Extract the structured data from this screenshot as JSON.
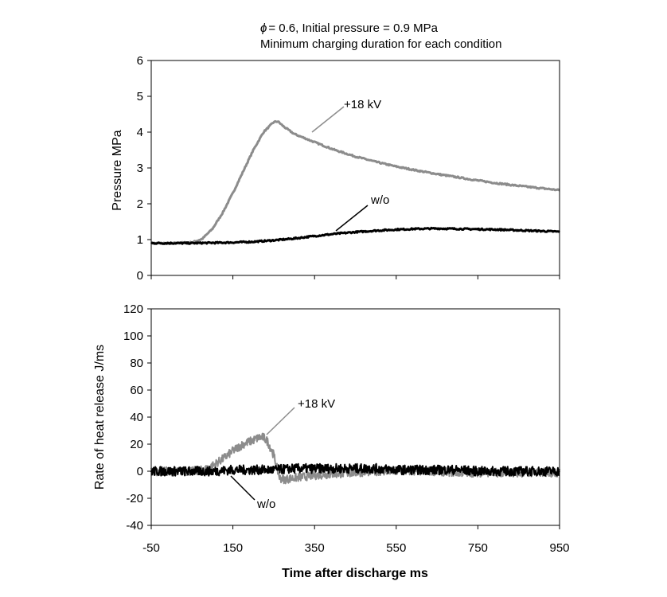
{
  "title": {
    "line1_symbol": "ϕ",
    "line1": "= 0.6, Initial pressure = 0.9 MPa",
    "line2": "Minimum charging duration for each condition"
  },
  "colors": {
    "kv18": "#8c8c8c",
    "wo": "#000000",
    "axis": "#000000"
  },
  "chart_data": [
    {
      "type": "line",
      "ylabel": "Pressure    MPa",
      "xlim": [
        -50,
        950
      ],
      "ylim": [
        0,
        6
      ],
      "yticks": [
        "0",
        "1",
        "2",
        "3",
        "4",
        "5",
        "6"
      ],
      "xticks": [
        -50,
        150,
        350,
        550,
        750,
        950
      ],
      "grid": false,
      "series": [
        {
          "name": "+18 kV",
          "x": [
            -50,
            0,
            50,
            75,
            100,
            125,
            150,
            175,
            200,
            225,
            250,
            260,
            275,
            300,
            350,
            400,
            450,
            500,
            550,
            600,
            650,
            700,
            750,
            800,
            850,
            900,
            950
          ],
          "y": [
            0.9,
            0.9,
            0.92,
            1.02,
            1.3,
            1.75,
            2.3,
            2.9,
            3.5,
            4.0,
            4.28,
            4.3,
            4.15,
            3.95,
            3.72,
            3.5,
            3.32,
            3.17,
            3.04,
            2.93,
            2.83,
            2.74,
            2.65,
            2.57,
            2.5,
            2.44,
            2.38
          ]
        },
        {
          "name": "w/o",
          "x": [
            -50,
            0,
            50,
            100,
            150,
            200,
            250,
            300,
            350,
            400,
            450,
            500,
            550,
            600,
            650,
            700,
            750,
            800,
            850,
            900,
            950
          ],
          "y": [
            0.9,
            0.9,
            0.9,
            0.91,
            0.92,
            0.94,
            0.98,
            1.03,
            1.1,
            1.16,
            1.21,
            1.25,
            1.28,
            1.3,
            1.31,
            1.3,
            1.29,
            1.28,
            1.26,
            1.24,
            1.22
          ]
        }
      ],
      "annotations": [
        {
          "text": "+18 kV",
          "series": "+18 kV"
        },
        {
          "text": "w/o",
          "series": "w/o"
        }
      ]
    },
    {
      "type": "line",
      "ylabel": "Rate of heat release    J/ms",
      "xlabel": "Time after discharge     ms",
      "xlim": [
        -50,
        950
      ],
      "ylim": [
        -40,
        120
      ],
      "yticks": [
        "-40",
        "-20",
        "0",
        "20",
        "40",
        "60",
        "80",
        "100",
        "120"
      ],
      "xticks": [
        "-50",
        "150",
        "350",
        "550",
        "750",
        "950"
      ],
      "grid": false,
      "series": [
        {
          "name": "+18 kV",
          "x": [
            -50,
            0,
            50,
            80,
            100,
            125,
            150,
            175,
            200,
            215,
            225,
            235,
            250,
            260,
            265,
            275,
            300,
            350,
            400,
            450,
            500,
            550,
            600,
            650,
            700,
            750,
            800,
            850,
            900,
            950
          ],
          "y": [
            0,
            0,
            0,
            1,
            4,
            9,
            15,
            20,
            23,
            25,
            25,
            22,
            12,
            0,
            -5,
            -6,
            -5,
            -3,
            -2,
            -1,
            0,
            0,
            0,
            0,
            -1,
            -1,
            -1,
            -1,
            -1,
            -1
          ]
        },
        {
          "name": "w/o",
          "x": [
            -50,
            0,
            50,
            100,
            150,
            200,
            250,
            300,
            350,
            400,
            450,
            500,
            550,
            600,
            650,
            700,
            750,
            800,
            850,
            900,
            950
          ],
          "y": [
            0,
            0,
            0,
            0,
            1,
            1,
            1,
            2,
            2,
            2,
            2,
            2,
            1,
            1,
            1,
            1,
            0,
            0,
            0,
            0,
            0
          ]
        }
      ],
      "annotations": [
        {
          "text": "+18 kV",
          "series": "+18 kV"
        },
        {
          "text": "w/o",
          "series": "w/o"
        }
      ]
    }
  ]
}
